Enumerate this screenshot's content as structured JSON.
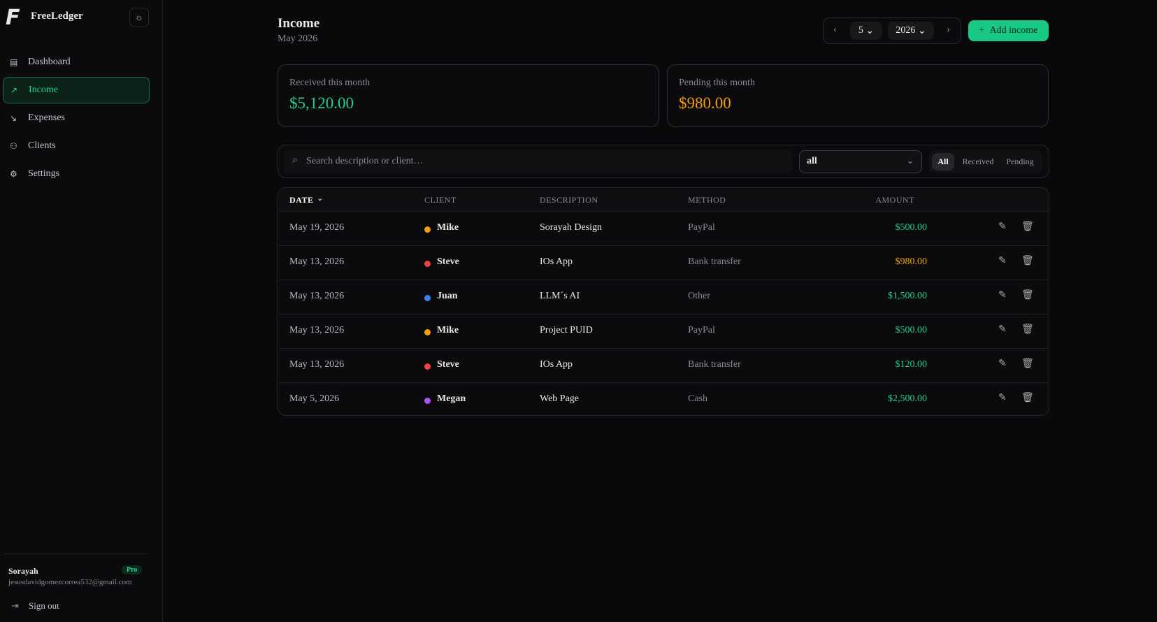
{
  "sidebar": {
    "brand": "FreeLedger",
    "nav": [
      "Dashboard",
      "Income",
      "Expenses",
      "Clients",
      "Settings"
    ],
    "user": {
      "name": "Sorayah",
      "badge": "Pro",
      "email": "jesusdavidgomezcorrea532@gmail.com",
      "sign_out": "Sign out"
    }
  },
  "header": {
    "title": "Income",
    "subtitle": "May 2026",
    "month": "5",
    "year": "2026",
    "add_button": "Add income"
  },
  "cards": [
    {
      "label": "Received this month",
      "value": "$5,120.00",
      "color": "#1fd08a"
    },
    {
      "label": "Pending this month",
      "value": "$980.00",
      "color": "#f59e0b"
    }
  ],
  "filters": {
    "search_placeholder": "Search description or client…",
    "select": "all",
    "tabs": [
      "All",
      "Received",
      "Pending"
    ]
  },
  "table": {
    "columns": [
      "DATE",
      "CLIENT",
      "DESCRIPTION",
      "METHOD",
      "AMOUNT"
    ],
    "rows": [
      {
        "date": "May 19, 2026",
        "client": "Mike",
        "client_color": "#f59e0b",
        "description": "Sorayah Design",
        "method": "PayPal",
        "amount": "$500.00",
        "amount_color": "#1fd08a"
      },
      {
        "date": "May 13, 2026",
        "client": "Steve",
        "client_color": "#ef4444",
        "description": "IOs App",
        "method": "Bank transfer",
        "amount": "$980.00",
        "amount_color": "#f59e0b"
      },
      {
        "date": "May 13, 2026",
        "client": "Juan",
        "client_color": "#3b82f6",
        "description": "LLM´s AI",
        "method": "Other",
        "amount": "$1,500.00",
        "amount_color": "#1fd08a"
      },
      {
        "date": "May 13, 2026",
        "client": "Mike",
        "client_color": "#f59e0b",
        "description": "Project PUID",
        "method": "PayPal",
        "amount": "$500.00",
        "amount_color": "#1fd08a"
      },
      {
        "date": "May 13, 2026",
        "client": "Steve",
        "client_color": "#ef4444",
        "description": "IOs App",
        "method": "Bank transfer",
        "amount": "$120.00",
        "amount_color": "#1fd08a"
      },
      {
        "date": "May 5, 2026",
        "client": "Megan",
        "client_color": "#a855f7",
        "description": "Web Page",
        "method": "Cash",
        "amount": "$2,500.00",
        "amount_color": "#1fd08a"
      }
    ]
  }
}
